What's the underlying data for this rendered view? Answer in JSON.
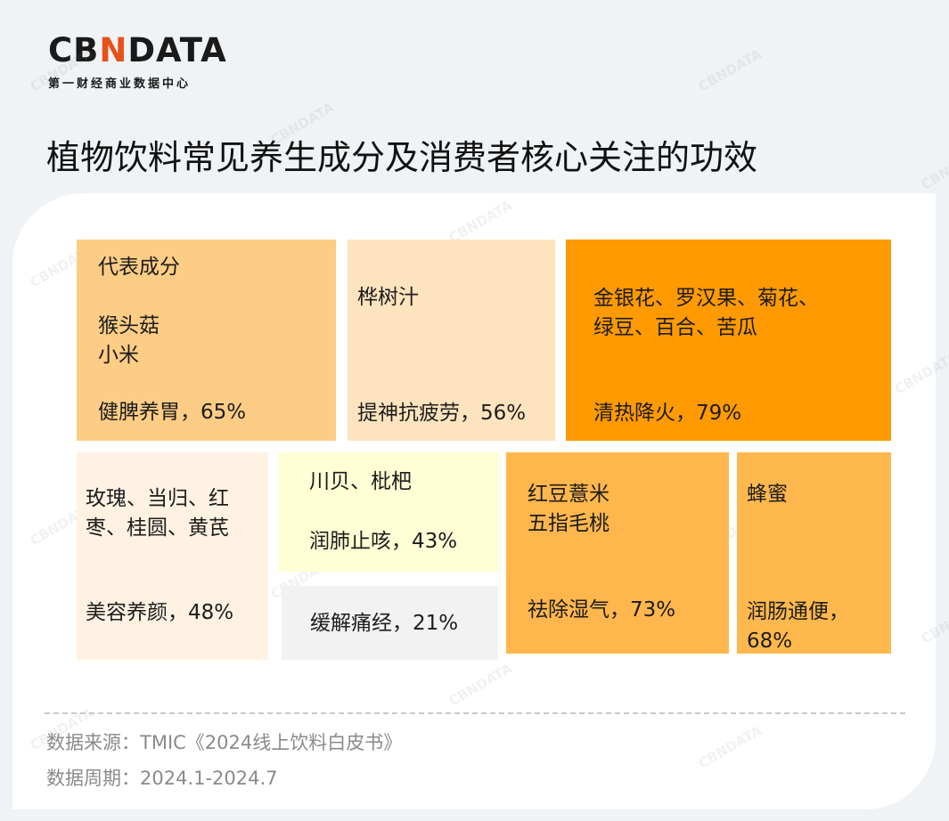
{
  "brand": {
    "logo_part1": "CB",
    "logo_accent": "N",
    "logo_part2": "DATA",
    "tagline": "第一财经商业数据中心",
    "watermark": "CBNDATA"
  },
  "title": "植物饮料常见养生成分及消费者核心关注的功效",
  "colors": {
    "background": "#eff3f5",
    "card": "#ffffff",
    "accent": "#e8501a"
  },
  "chart_data": {
    "type": "treemap",
    "header_label": "代表成分",
    "items": [
      {
        "ingredients": "猴头菇\n小米",
        "benefit": "健脾养胃",
        "value_text": "65%",
        "value": 65,
        "color": "#fdcd85"
      },
      {
        "ingredients": "桦树汁",
        "benefit": "提神抗疲劳",
        "value_text": "56%",
        "value": 56,
        "color": "#fee4be"
      },
      {
        "ingredients": "金银花、罗汉果、菊花、\n绿豆、百合、苦瓜",
        "benefit": "清热降火",
        "value_text": "79%",
        "value": 79,
        "color": "#ff9a02"
      },
      {
        "ingredients": "玫瑰、当归、红\n枣、桂圆、黄芪",
        "benefit": "美容养颜",
        "value_text": "48%",
        "value": 48,
        "color": "#fff2e2"
      },
      {
        "ingredients": "川贝、枇杷",
        "benefit": "润肺止咳",
        "value_text": "43%",
        "value": 43,
        "color": "#ffffd5"
      },
      {
        "ingredients": "",
        "benefit": "缓解痛经",
        "value_text": "21%",
        "value": 21,
        "color": "#f2f2f2"
      },
      {
        "ingredients": "红豆薏米\n五指毛桃",
        "benefit": "祛除湿气",
        "value_text": "73%",
        "value": 73,
        "color": "#ffb74d"
      },
      {
        "ingredients": "蜂蜜",
        "benefit": "润肠通便",
        "value_text": "68%",
        "value": 68,
        "color": "#ffb84d"
      }
    ]
  },
  "footer": {
    "source": "数据来源：TMIC《2024线上饮料白皮书》",
    "period": "数据周期：2024.1-2024.7"
  }
}
